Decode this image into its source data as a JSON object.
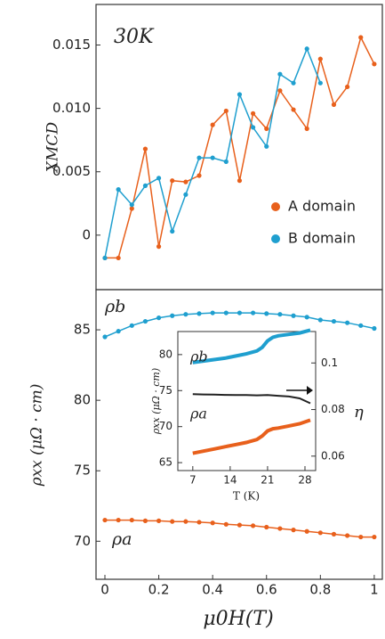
{
  "chart_data": [
    {
      "type": "line",
      "annotation": "30K",
      "ylabel": "XMCD",
      "xlim": [
        -0.033,
        1.03
      ],
      "ylim": [
        -0.0043,
        0.0182
      ],
      "yticks": [
        0,
        0.005,
        {
          "value": 0.01,
          "label": "0.010"
        },
        0.015
      ],
      "legend": "right",
      "markers": true,
      "series": [
        {
          "name": "A domain",
          "color": "#e8601c",
          "x": [
            0,
            0.05,
            0.1,
            0.15,
            0.2,
            0.25,
            0.3,
            0.35,
            0.4,
            0.45,
            0.5,
            0.55,
            0.6,
            0.65,
            0.7,
            0.75,
            0.8,
            0.85,
            0.9,
            0.95,
            1.0
          ],
          "values": [
            -0.0018,
            -0.0018,
            0.0021,
            0.0068,
            -0.0009,
            0.0043,
            0.0042,
            0.0047,
            0.0087,
            0.0098,
            0.0043,
            0.0096,
            0.0084,
            0.0114,
            0.0099,
            0.0084,
            0.0139,
            0.0103,
            0.0117,
            0.0156,
            0.0135
          ]
        },
        {
          "name": "B domain",
          "color": "#1f9fcf",
          "x": [
            0,
            0.05,
            0.1,
            0.15,
            0.2,
            0.25,
            0.3,
            0.35,
            0.4,
            0.45,
            0.5,
            0.55,
            0.6,
            0.65,
            0.7,
            0.75,
            0.8
          ],
          "values": [
            -0.0018,
            0.0036,
            0.0024,
            0.0039,
            0.0045,
            0.0003,
            0.0032,
            0.0061,
            0.0061,
            0.0058,
            0.0111,
            0.0085,
            0.007,
            0.0127,
            0.012,
            0.0147,
            0.012
          ]
        }
      ]
    },
    {
      "type": "line",
      "xlabel": "μ0H(T)",
      "ylabel": "ρxx (μΩ · cm)",
      "xlim": [
        -0.033,
        1.03
      ],
      "ylim": [
        67.3,
        87.85
      ],
      "xticks": [
        0,
        0.2,
        0.4,
        0.6,
        0.8,
        1
      ],
      "yticks": [
        70,
        75,
        80,
        85
      ],
      "markers": true,
      "series": [
        {
          "name": "ρb",
          "color": "#1f9fcf",
          "x": [
            0,
            0.05,
            0.1,
            0.15,
            0.2,
            0.25,
            0.3,
            0.35,
            0.4,
            0.45,
            0.5,
            0.55,
            0.6,
            0.65,
            0.7,
            0.75,
            0.8,
            0.85,
            0.9,
            0.95,
            1.0
          ],
          "values": [
            84.5,
            84.9,
            85.3,
            85.6,
            85.85,
            86.0,
            86.1,
            86.15,
            86.2,
            86.2,
            86.2,
            86.2,
            86.15,
            86.1,
            86.0,
            85.9,
            85.7,
            85.6,
            85.5,
            85.3,
            85.1
          ]
        },
        {
          "name": "ρa",
          "color": "#e8601c",
          "x": [
            0,
            0.05,
            0.1,
            0.15,
            0.2,
            0.25,
            0.3,
            0.35,
            0.4,
            0.45,
            0.5,
            0.55,
            0.6,
            0.65,
            0.7,
            0.75,
            0.8,
            0.85,
            0.9,
            0.95,
            1.0
          ],
          "values": [
            71.5,
            71.5,
            71.5,
            71.45,
            71.45,
            71.4,
            71.4,
            71.35,
            71.3,
            71.2,
            71.15,
            71.1,
            71.0,
            70.9,
            70.8,
            70.7,
            70.6,
            70.5,
            70.4,
            70.3,
            70.3
          ]
        }
      ]
    },
    {
      "type": "line",
      "xlabel": "T (K)",
      "ylabel": "ρxx (μΩ · cm)",
      "y2label": "η",
      "xlim": [
        4.2,
        30
      ],
      "ylim": [
        63.9,
        83.2
      ],
      "y2lim": [
        0.0538,
        0.1135
      ],
      "xticks": [
        7,
        14,
        21,
        28
      ],
      "yticks": [
        65,
        70,
        75,
        80
      ],
      "y2ticks": [
        0.06,
        0.08,
        0.1
      ],
      "markers": false,
      "series": [
        {
          "name": "ρb",
          "color": "#1f9fcf",
          "x": [
            7,
            9,
            11,
            13,
            15,
            17,
            19,
            20,
            21,
            22,
            23,
            25,
            27,
            29
          ],
          "values": [
            78.9,
            79.1,
            79.3,
            79.5,
            79.8,
            80.1,
            80.5,
            81.0,
            81.9,
            82.4,
            82.6,
            82.8,
            83.0,
            83.4
          ]
        },
        {
          "name": "η",
          "color": "#222222",
          "axis": "y2",
          "x": [
            7,
            9,
            11,
            13,
            15,
            17,
            19,
            21,
            23,
            25,
            27,
            29
          ],
          "values": [
            0.0866,
            0.0865,
            0.0864,
            0.0863,
            0.0862,
            0.0862,
            0.0861,
            0.0862,
            0.0859,
            0.0856,
            0.0848,
            0.0827
          ]
        },
        {
          "name": "ρa",
          "color": "#e8601c",
          "x": [
            7,
            9,
            11,
            13,
            15,
            17,
            19,
            20,
            21,
            22,
            23,
            25,
            27,
            29
          ],
          "values": [
            66.3,
            66.6,
            66.9,
            67.2,
            67.5,
            67.8,
            68.2,
            68.7,
            69.4,
            69.7,
            69.8,
            70.1,
            70.4,
            70.9
          ]
        }
      ]
    }
  ]
}
